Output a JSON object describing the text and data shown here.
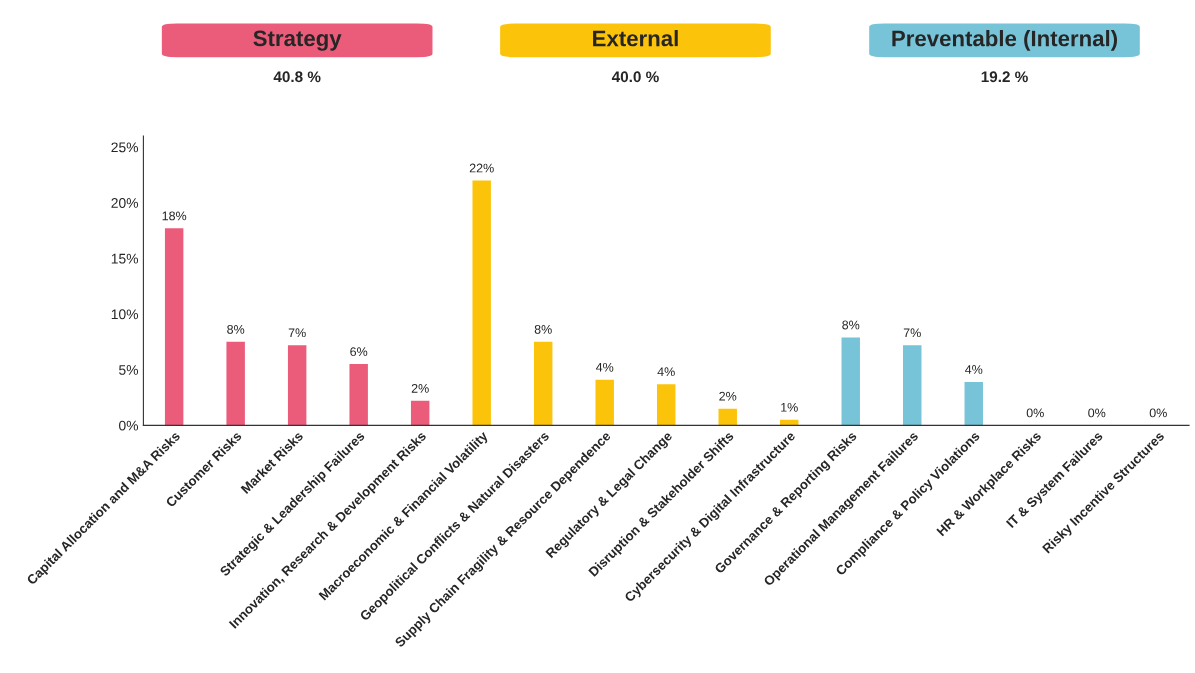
{
  "chart_data": {
    "type": "bar",
    "categories": [
      "Capital Allocation and M&A Risks",
      "Customer Risks",
      "Market Risks",
      "Strategic & Leadership Failures",
      "Innovation, Research & Development Risks",
      "Macroeconomic & Financial Volatility",
      "Geopolitical Conflicts & Natural Disasters",
      "Supply Chain Fragility & Resource Dependence",
      "Regulatory & Legal Change",
      "Disruption & Stakeholder Shifts",
      "Cybersecurity & Digital Infrastructure",
      "Governance & Reporting Risks",
      "Operational Management Failures",
      "Compliance & Policy Violations",
      "HR & Workplace Risks",
      "IT & System Failures",
      "Risky Incentive Structures"
    ],
    "series": [
      {
        "name": "Strategy",
        "color": "#eb5b7a",
        "values": [
          17.7,
          7.5,
          7.2,
          5.5,
          2.2,
          null,
          null,
          null,
          null,
          null,
          null,
          null,
          null,
          null,
          null,
          null,
          null
        ],
        "value_labels": [
          "18%",
          "8%",
          "7%",
          "6%",
          "2%",
          null,
          null,
          null,
          null,
          null,
          null,
          null,
          null,
          null,
          null,
          null,
          null
        ]
      },
      {
        "name": "External",
        "color": "#fbc30a",
        "values": [
          null,
          null,
          null,
          null,
          null,
          22.0,
          7.5,
          4.1,
          3.7,
          1.5,
          0.5,
          null,
          null,
          null,
          null,
          null,
          null
        ],
        "value_labels": [
          null,
          null,
          null,
          null,
          null,
          "22%",
          "8%",
          "4%",
          "4%",
          "2%",
          "1%",
          null,
          null,
          null,
          null,
          null,
          null
        ]
      },
      {
        "name": "Preventable (Internal)",
        "color": "#77c4d8",
        "values": [
          null,
          null,
          null,
          null,
          null,
          null,
          null,
          null,
          null,
          null,
          null,
          7.9,
          7.2,
          3.9,
          0,
          0,
          0
        ],
        "value_labels": [
          null,
          null,
          null,
          null,
          null,
          null,
          null,
          null,
          null,
          null,
          null,
          "8%",
          "7%",
          "4%",
          "0%",
          "0%",
          "0%"
        ]
      }
    ],
    "annotations": [
      "40.8 %",
      "40.0 %",
      "19.2 %"
    ],
    "ylim": [
      0,
      26
    ],
    "yticks": [
      {
        "value": 0,
        "label": "0%"
      },
      {
        "value": 5,
        "label": "5%"
      },
      {
        "value": 10,
        "label": "10%"
      },
      {
        "value": 15,
        "label": "15%"
      },
      {
        "value": 20,
        "label": "20%"
      },
      {
        "value": 25,
        "label": "25%"
      }
    ],
    "grid": false,
    "legend": "top"
  }
}
